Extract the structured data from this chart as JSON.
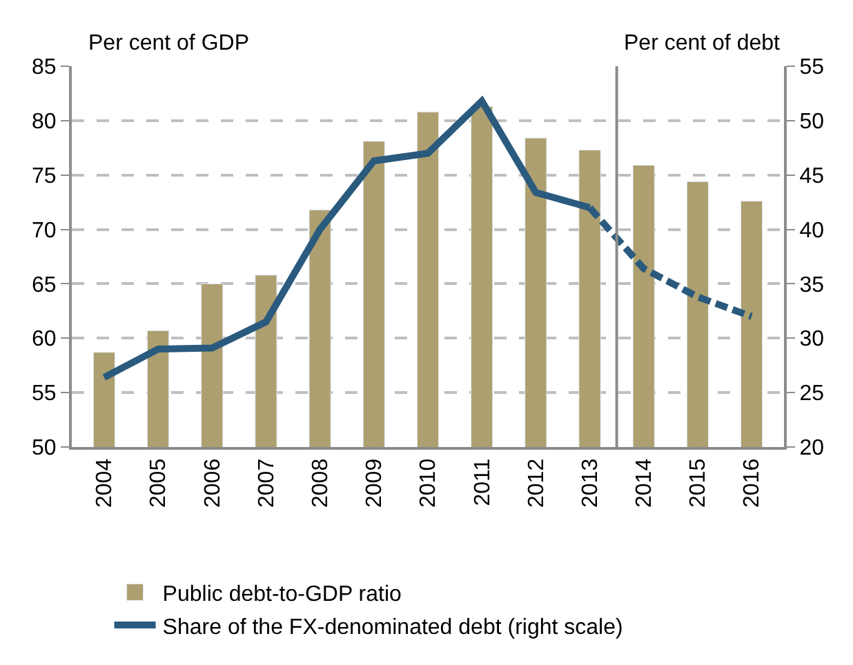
{
  "chart_data": {
    "type": "bar",
    "ylabel": "Per cent of GDP",
    "y2label": "Per cent of debt",
    "x": [
      2004,
      2005,
      2006,
      2007,
      2008,
      2009,
      2010,
      2011,
      2012,
      2013,
      2014,
      2015,
      2016
    ],
    "xlim": [
      2003.4,
      2016.6
    ],
    "xticks": [
      2004,
      2005,
      2006,
      2007,
      2008,
      2009,
      2010,
      2011,
      2012,
      2013,
      2014,
      2015,
      2016
    ],
    "ylim": [
      50,
      85
    ],
    "yticks": [
      50,
      55,
      60,
      65,
      70,
      75,
      80,
      85
    ],
    "y2lim": [
      20,
      55
    ],
    "y2ticks": [
      20,
      25,
      30,
      35,
      40,
      45,
      50,
      55
    ],
    "series": [
      {
        "name": "Public debt-to-GDP ratio",
        "color": "#ad9f6f",
        "values": [
          58.7,
          60.7,
          65.0,
          65.8,
          71.8,
          78.1,
          80.8,
          81.3,
          78.4,
          77.3,
          75.9,
          74.4,
          72.6
        ]
      },
      {
        "name": "Share of the FX-denominated debt (right scale)",
        "type": "line",
        "axis": "y2",
        "color": "#2a5a7e",
        "line_style": "solid",
        "values": [
          26.4,
          29.0,
          29.1,
          31.5,
          40.0,
          46.3,
          47.0,
          51.8,
          43.4,
          42.0,
          null,
          null,
          null
        ]
      },
      {
        "type": "line",
        "axis": "y2",
        "color": "#2a5a7e",
        "line_style": "dashed",
        "values": [
          null,
          null,
          null,
          null,
          null,
          null,
          null,
          null,
          null,
          42.0,
          36.4,
          33.8,
          32.0
        ]
      }
    ],
    "ref_lines": [
      {
        "axis": "x",
        "value": 2013.5,
        "color": "#8c8c8c"
      }
    ],
    "grid": "y",
    "legend": "bottom"
  }
}
